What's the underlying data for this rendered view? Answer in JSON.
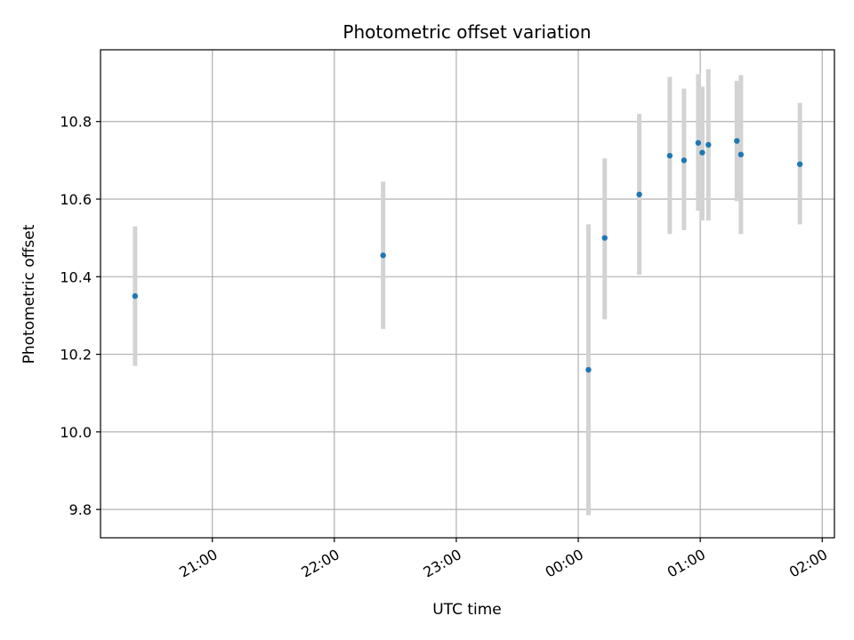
{
  "chart_data": {
    "type": "scatter",
    "title": "Photometric offset variation",
    "xlabel": "UTC time",
    "ylabel": "Photometric offset",
    "x_ticks": [
      "21:00",
      "22:00",
      "23:00",
      "00:00",
      "01:00",
      "02:00"
    ],
    "y_ticks": [
      "9.8",
      "10.0",
      "10.2",
      "10.4",
      "10.6",
      "10.8"
    ],
    "x_tick_hours": [
      21,
      22,
      23,
      24,
      25,
      26
    ],
    "y_tick_values": [
      9.8,
      10.0,
      10.2,
      10.4,
      10.6,
      10.8
    ],
    "xlim": [
      "20:05",
      "02:06"
    ],
    "ylim": [
      9.727,
      10.985
    ],
    "grid": true,
    "colors": {
      "point": "#1f77b4",
      "errorbar": "#d3d3d3",
      "grid": "#b0b0b0"
    },
    "series": [
      {
        "points": [
          {
            "x": "20:22",
            "y": 10.35,
            "err_low": 10.17,
            "err_high": 10.53
          },
          {
            "x": "22:24",
            "y": 10.455,
            "err_low": 10.265,
            "err_high": 10.645
          },
          {
            "x": "00:05",
            "y": 10.16,
            "err_low": 9.785,
            "err_high": 10.535
          },
          {
            "x": "00:13",
            "y": 10.5,
            "err_low": 10.29,
            "err_high": 10.705
          },
          {
            "x": "00:30",
            "y": 10.612,
            "err_low": 10.405,
            "err_high": 10.82
          },
          {
            "x": "00:45",
            "y": 10.712,
            "err_low": 10.51,
            "err_high": 10.915
          },
          {
            "x": "00:52",
            "y": 10.7,
            "err_low": 10.52,
            "err_high": 10.885
          },
          {
            "x": "00:59",
            "y": 10.745,
            "err_low": 10.57,
            "err_high": 10.922
          },
          {
            "x": "01:01",
            "y": 10.72,
            "err_low": 10.545,
            "err_high": 10.89
          },
          {
            "x": "01:04",
            "y": 10.74,
            "err_low": 10.545,
            "err_high": 10.935
          },
          {
            "x": "01:18",
            "y": 10.75,
            "err_low": 10.595,
            "err_high": 10.905
          },
          {
            "x": "01:20",
            "y": 10.715,
            "err_low": 10.51,
            "err_high": 10.92
          },
          {
            "x": "01:49",
            "y": 10.69,
            "err_low": 10.535,
            "err_high": 10.848
          }
        ]
      }
    ]
  }
}
